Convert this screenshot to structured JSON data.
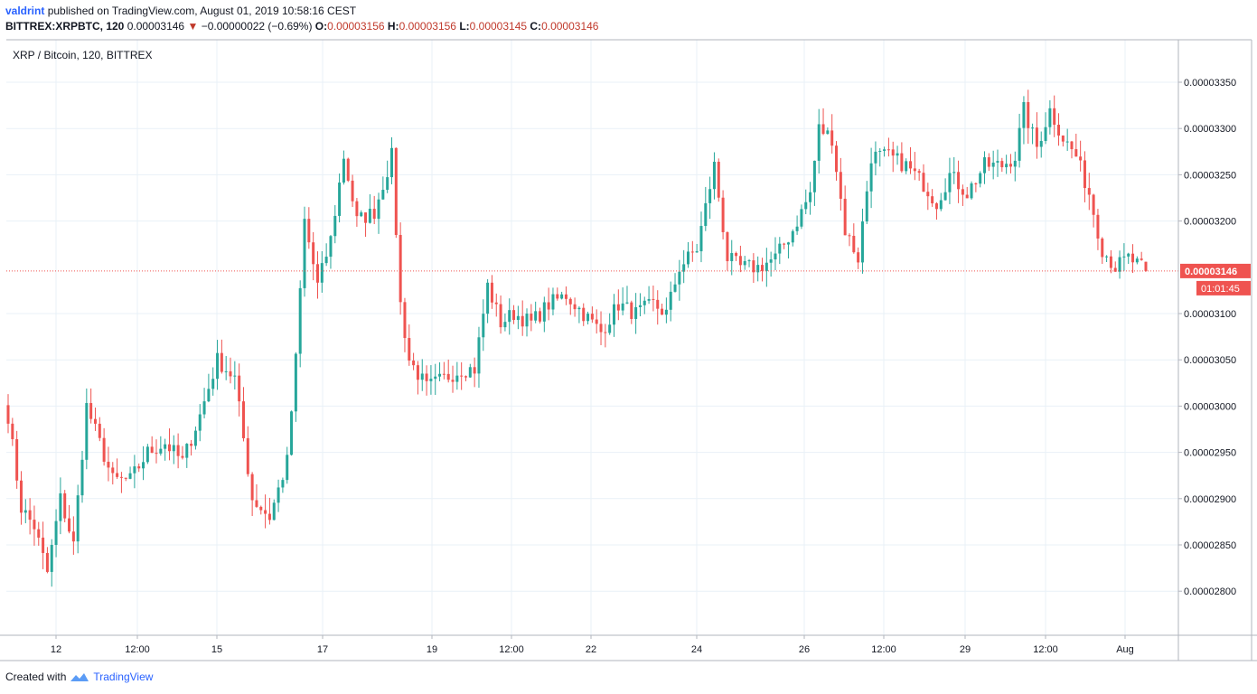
{
  "header": {
    "user": "valdrint",
    "published_text": "published on TradingView.com, August 01, 2019 10:58:16 CEST",
    "symbol": "BITTREX:XRPBTC, 120",
    "last": "0.00003146",
    "change": "−0.00000022 (−0.69%)",
    "change_arrow": "▼",
    "o_label": "O:",
    "o_value": "0.00003156",
    "h_label": "H:",
    "h_value": "0.00003156",
    "l_label": "L:",
    "l_value": "0.00003145",
    "c_label": "C:",
    "c_value": "0.00003146"
  },
  "footer": {
    "created_with": "Created with",
    "brand": "TradingView"
  },
  "colors": {
    "up": "#26a69a",
    "down": "#ef5350",
    "grid": "#e9f1f7",
    "axis": "#b2b5be",
    "price_line": "#ef5350"
  },
  "chart_data": {
    "type": "candlestick",
    "title": "XRP / Bitcoin, 120, BITTREX",
    "interval_minutes": 120,
    "y_ticks": [
      "0.00002800",
      "0.00002850",
      "0.00002900",
      "0.00002950",
      "0.00003000",
      "0.00003050",
      "0.00003100",
      "0.00003200",
      "0.00003250",
      "0.00003300",
      "0.00003350"
    ],
    "ylim": [
      2.76e-05,
      3.4e-05
    ],
    "x_ticks": [
      "12",
      "12:00",
      "15",
      "17",
      "19",
      "12:00",
      "22",
      "24",
      "26",
      "12:00",
      "29",
      "12:00",
      "Aug"
    ],
    "current_price": "0.00003146",
    "countdown": "01:01:45",
    "legend_position": "top-left",
    "grid": true,
    "series": [
      {
        "name": "XRPBTC",
        "anchors_close": [
          [
            0,
            2.99e-05
          ],
          [
            3,
            2.89e-05
          ],
          [
            6,
            2.87e-05
          ],
          [
            9,
            2.82e-05
          ],
          [
            12,
            2.9e-05
          ],
          [
            15,
            2.85e-05
          ],
          [
            18,
            3e-05
          ],
          [
            21,
            2.96e-05
          ],
          [
            24,
            2.92e-05
          ],
          [
            28,
            2.92e-05
          ],
          [
            32,
            2.95e-05
          ],
          [
            36,
            2.96e-05
          ],
          [
            40,
            2.94e-05
          ],
          [
            44,
            2.99e-05
          ],
          [
            48,
            3.05e-05
          ],
          [
            52,
            3.03e-05
          ],
          [
            56,
            2.9e-05
          ],
          [
            60,
            2.88e-05
          ],
          [
            64,
            2.94e-05
          ],
          [
            66,
            3.05e-05
          ],
          [
            68,
            3.2e-05
          ],
          [
            71,
            3.13e-05
          ],
          [
            74,
            3.18e-05
          ],
          [
            77,
            3.27e-05
          ],
          [
            80,
            3.2e-05
          ],
          [
            84,
            3.21e-05
          ],
          [
            88,
            3.27e-05
          ],
          [
            90,
            3.11e-05
          ],
          [
            92,
            3.05e-05
          ],
          [
            96,
            3.02e-05
          ],
          [
            100,
            3.03e-05
          ],
          [
            104,
            3.04e-05
          ],
          [
            107,
            3.04e-05
          ],
          [
            110,
            3.13e-05
          ],
          [
            113,
            3.09e-05
          ],
          [
            116,
            3.1e-05
          ],
          [
            120,
            3.09e-05
          ],
          [
            124,
            3.11e-05
          ],
          [
            128,
            3.12e-05
          ],
          [
            132,
            3.1e-05
          ],
          [
            136,
            3.08e-05
          ],
          [
            140,
            3.11e-05
          ],
          [
            144,
            3.1e-05
          ],
          [
            148,
            3.11e-05
          ],
          [
            151,
            3.1e-05
          ],
          [
            154,
            3.15e-05
          ],
          [
            158,
            3.17e-05
          ],
          [
            162,
            3.26e-05
          ],
          [
            165,
            3.16e-05
          ],
          [
            168,
            3.15e-05
          ],
          [
            172,
            3.15e-05
          ],
          [
            176,
            3.16e-05
          ],
          [
            180,
            3.19e-05
          ],
          [
            184,
            3.23e-05
          ],
          [
            186,
            3.3e-05
          ],
          [
            189,
            3.29e-05
          ],
          [
            192,
            3.19e-05
          ],
          [
            195,
            3.16e-05
          ],
          [
            198,
            3.27e-05
          ],
          [
            202,
            3.27e-05
          ],
          [
            206,
            3.26e-05
          ],
          [
            210,
            3.24e-05
          ],
          [
            213,
            3.22e-05
          ],
          [
            216,
            3.25e-05
          ],
          [
            220,
            3.23e-05
          ],
          [
            224,
            3.26e-05
          ],
          [
            228,
            3.26e-05
          ],
          [
            231,
            3.27e-05
          ],
          [
            233,
            3.32e-05
          ],
          [
            236,
            3.28e-05
          ],
          [
            239,
            3.32e-05
          ],
          [
            242,
            3.29e-05
          ],
          [
            245,
            3.27e-05
          ],
          [
            248,
            3.23e-05
          ],
          [
            251,
            3.17e-05
          ],
          [
            254,
            3.15e-05
          ],
          [
            257,
            3.16e-05
          ],
          [
            261,
            3.146e-05
          ]
        ],
        "last": {
          "open": 3.156e-05,
          "high": 3.156e-05,
          "low": 3.145e-05,
          "close": 3.146e-05
        }
      }
    ]
  }
}
